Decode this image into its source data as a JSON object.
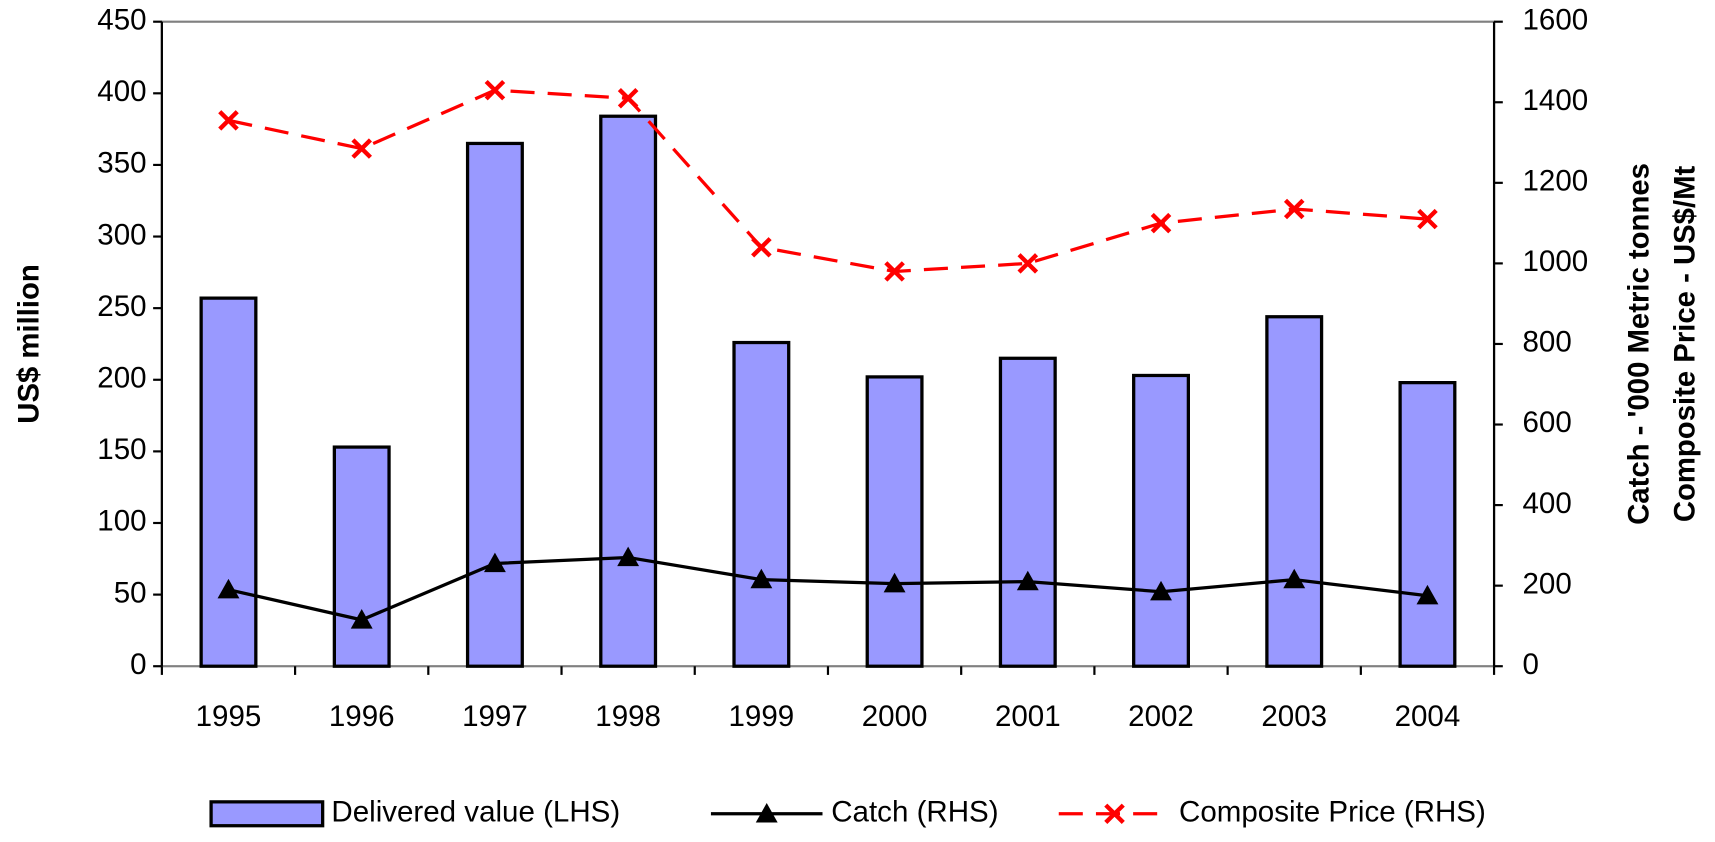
{
  "chart_data": {
    "type": "bar-line",
    "categories": [
      "1995",
      "1996",
      "1997",
      "1998",
      "1999",
      "2000",
      "2001",
      "2002",
      "2003",
      "2004"
    ],
    "ylabel": "US$ million",
    "y2label": [
      "Catch - '000 Metric tonnes",
      "Composite Price - US$/Mt"
    ],
    "ylim": [
      0,
      450
    ],
    "yticks": [
      0,
      50,
      100,
      150,
      200,
      250,
      300,
      350,
      400,
      450
    ],
    "y2lim": [
      0,
      1600
    ],
    "y2ticks": [
      0,
      200,
      400,
      600,
      800,
      1000,
      1200,
      1400,
      1600
    ],
    "legend": "bottom",
    "series": [
      {
        "name": "Delivered value (LHS)",
        "type": "bar",
        "color": "#9999ff",
        "values": [
          257,
          153,
          365,
          384,
          226,
          202,
          215,
          203,
          244,
          198
        ]
      },
      {
        "name": "Catch (RHS)",
        "type": "line",
        "axis": "y2",
        "color": "#000000",
        "marker": "triangle",
        "values": [
          190,
          115,
          255,
          270,
          215,
          205,
          210,
          185,
          215,
          175
        ]
      },
      {
        "name": "Composite Price (RHS)",
        "type": "line",
        "axis": "y2",
        "color": "#ff0000",
        "marker": "x",
        "dashed": true,
        "values": [
          1355,
          1285,
          1430,
          1410,
          1040,
          980,
          1000,
          1100,
          1135,
          1110
        ]
      }
    ]
  }
}
